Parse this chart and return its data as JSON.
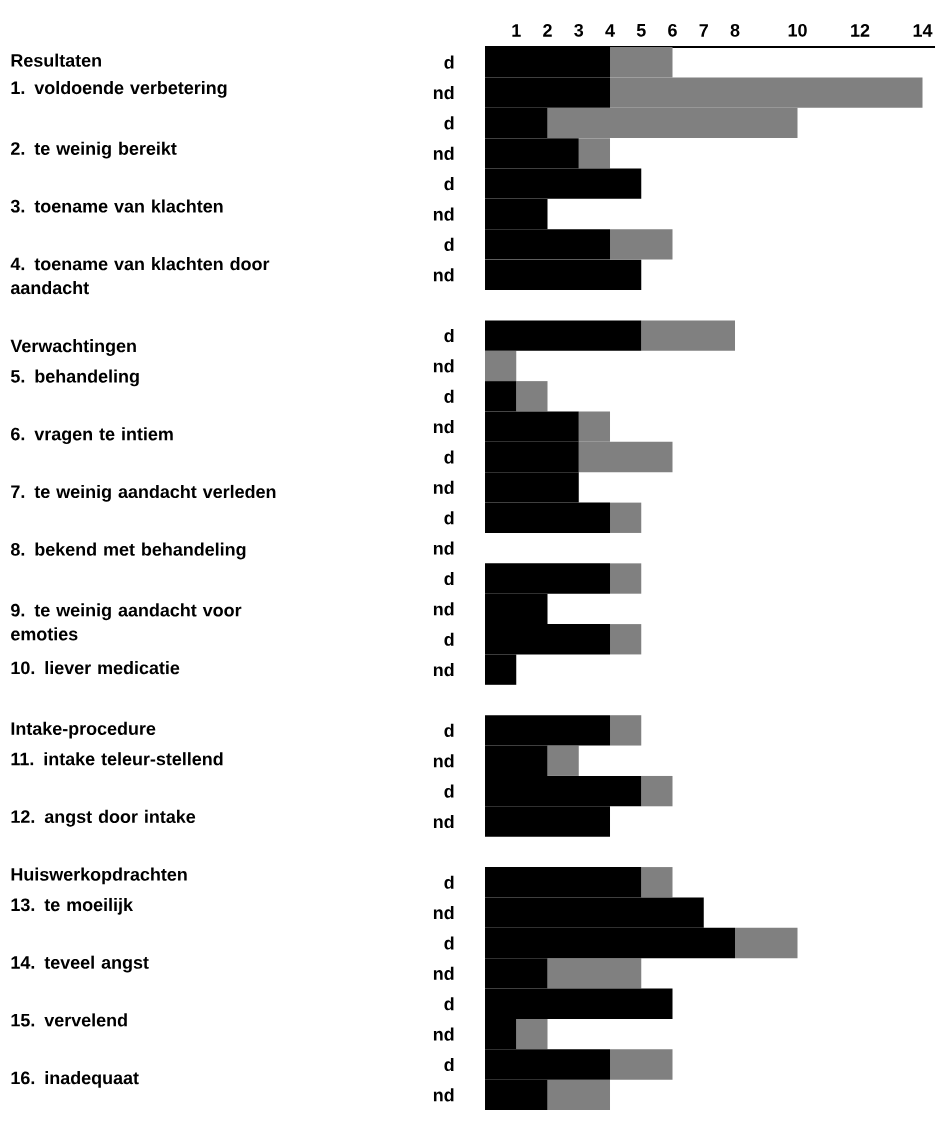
{
  "chart_data": {
    "type": "bar",
    "orientation": "horizontal",
    "stacked": true,
    "categories": [
      "d",
      "nd",
      "d",
      "nd",
      "d",
      "nd",
      "d",
      "nd",
      null,
      "d",
      "nd",
      "d",
      "nd",
      "d",
      "nd",
      "d",
      "nd",
      "d",
      "nd",
      "d",
      "nd",
      null,
      "d",
      "nd",
      "d",
      "nd",
      null,
      "d",
      "nd",
      "d",
      "nd",
      "d",
      "nd",
      "d",
      "nd"
    ],
    "series": [
      {
        "color": "#000000",
        "values": [
          4,
          4,
          2,
          3,
          5,
          2,
          4,
          5,
          null,
          5,
          0,
          1,
          3,
          3,
          3,
          4,
          0,
          4,
          2,
          4,
          1,
          null,
          4,
          2,
          5,
          4,
          null,
          5,
          7,
          8,
          2,
          6,
          1,
          4,
          2
        ]
      },
      {
        "color": "#808080",
        "values": [
          2,
          10,
          8,
          1,
          0,
          0,
          2,
          0,
          null,
          3,
          1,
          1,
          1,
          3,
          0,
          1,
          0,
          1,
          0,
          1,
          0,
          null,
          1,
          1,
          1,
          0,
          null,
          1,
          0,
          2,
          3,
          0,
          1,
          2,
          2
        ]
      }
    ],
    "xlim": [
      0,
      14.4
    ],
    "xticks": [
      1,
      2,
      3,
      4,
      5,
      6,
      7,
      8,
      10,
      12,
      14
    ],
    "annotations": [
      "Resultaten",
      "1. voldoende verbetering",
      "2. te weinig bereikt",
      "3. toename van klachten",
      "4. toename van klachten door aandacht",
      "Verwachtingen",
      "5. behandeling",
      "6. vragen te intiem",
      "7. te weinig aandacht verleden",
      "8. bekend met behandeling",
      "9. te weinig aandacht voor emoties",
      "10. liever medicatie",
      "Intake-procedure",
      "11. intake teleur-stellend",
      "12. angst door intake",
      "Huiswerkopdrachten",
      "13. te moeilijk",
      "14. teveel angst",
      "15. vervelend",
      "16. inadequaat"
    ]
  }
}
